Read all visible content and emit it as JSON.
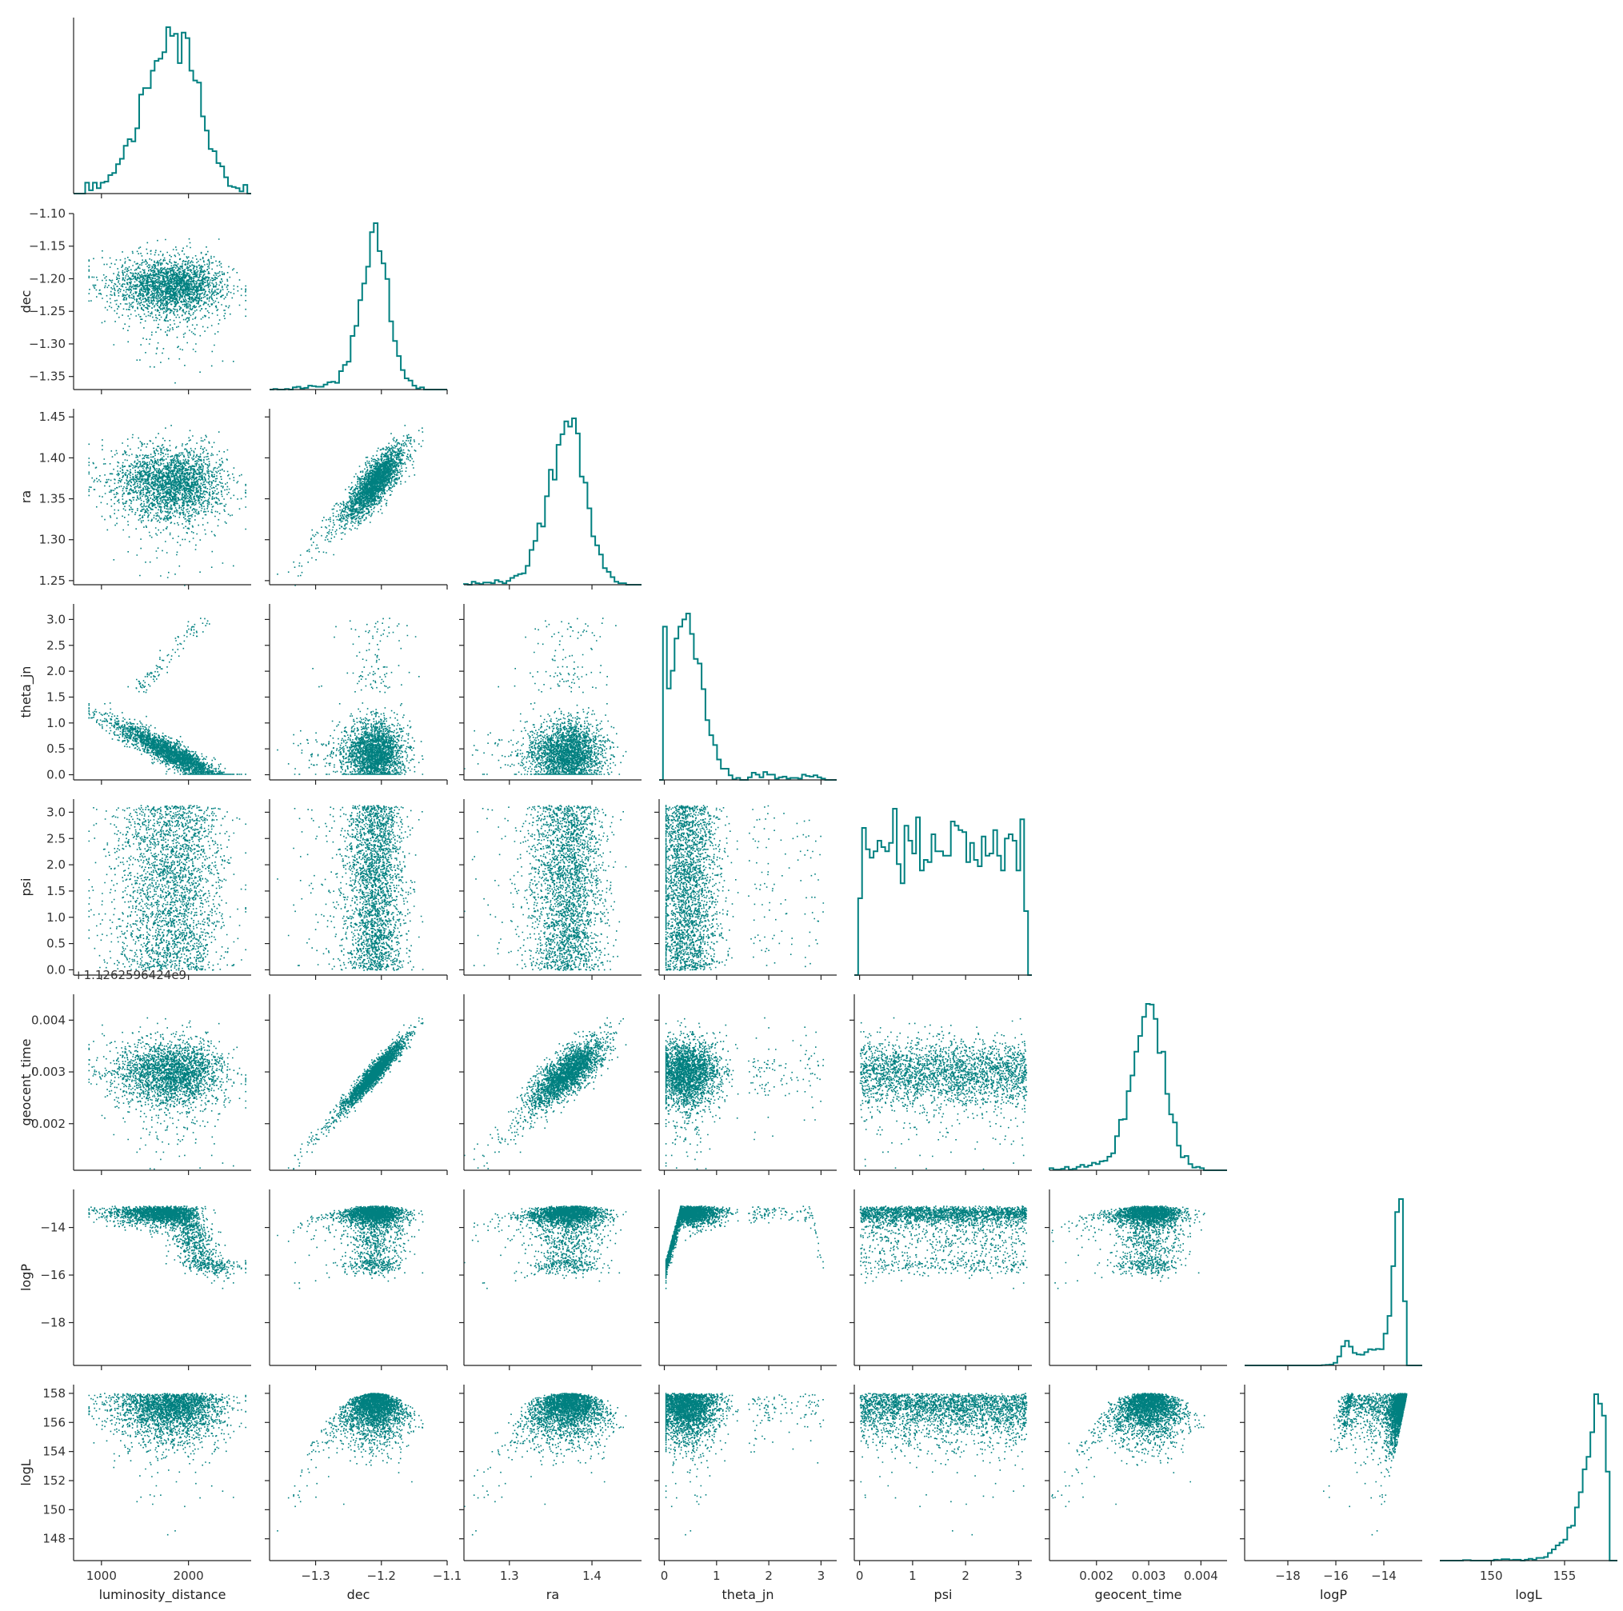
{
  "colors": {
    "series": "#008080",
    "axis": "#222222",
    "text": "#333333"
  },
  "chart_data": {
    "type": "scatter",
    "kind": "corner-plot",
    "n_samples": 2600,
    "offset_label": "+1.1262596424e9",
    "variables": [
      {
        "name": "luminosity_distance",
        "label": "luminosity_distance",
        "range": [
          680,
          2720
        ],
        "ticks": [
          1000,
          2000
        ],
        "tick_labels": [
          "1000",
          "2000"
        ],
        "mean": 1750,
        "sd": 330,
        "skew": -0.35
      },
      {
        "name": "dec",
        "label": "dec",
        "range": [
          -1.37,
          -1.1
        ],
        "ticks": [
          -1.35,
          -1.3,
          -1.25,
          -1.2,
          -1.15,
          -1.1
        ],
        "tick_labels": [
          "−1.35",
          "−1.30",
          "−1.25",
          "−1.20",
          "−1.15",
          "−1.10"
        ],
        "diag_ticks": [
          -1.3,
          -1.2,
          -1.1
        ],
        "diag_tick_labels": [
          "−1.3",
          "−1.2",
          "−1.1"
        ],
        "mean": -1.21,
        "sd": 0.022
      },
      {
        "name": "ra",
        "label": "ra",
        "range": [
          1.245,
          1.46
        ],
        "ticks": [
          1.25,
          1.3,
          1.35,
          1.4,
          1.45
        ],
        "tick_labels": [
          "1.25",
          "1.30",
          "1.35",
          "1.40",
          "1.45"
        ],
        "diag_ticks": [
          1.3,
          1.4
        ],
        "diag_tick_labels": [
          "1.3",
          "1.4"
        ],
        "mean": 1.37,
        "sd": 0.022
      },
      {
        "name": "theta_jn",
        "label": "theta_jn",
        "range": [
          -0.1,
          3.3
        ],
        "ticks": [
          0,
          0.5,
          1.0,
          1.5,
          2.0,
          2.5,
          3.0
        ],
        "tick_labels": [
          "0.0",
          "0.5",
          "1.0",
          "1.5",
          "2.0",
          "2.5",
          "3.0"
        ],
        "diag_ticks": [
          0,
          1,
          2,
          3
        ],
        "diag_tick_labels": [
          "0",
          "1",
          "2",
          "3"
        ],
        "mode": 0.6
      },
      {
        "name": "psi",
        "label": "psi",
        "range": [
          -0.1,
          3.25
        ],
        "ticks": [
          0,
          0.5,
          1.0,
          1.5,
          2.0,
          2.5,
          3.0
        ],
        "tick_labels": [
          "0.0",
          "0.5",
          "1.0",
          "1.5",
          "2.0",
          "2.5",
          "3.0"
        ],
        "diag_ticks": [
          0,
          1,
          2,
          3
        ],
        "diag_tick_labels": [
          "0",
          "1",
          "2",
          "3"
        ],
        "min": 0,
        "max": 3.1416
      },
      {
        "name": "geocent_time",
        "label": "geocent_time",
        "range": [
          0.0011,
          0.0045
        ],
        "ticks": [
          0.002,
          0.003,
          0.004
        ],
        "tick_labels": [
          "0.002",
          "0.003",
          "0.004"
        ],
        "mean": 0.003,
        "sd": 0.00032
      },
      {
        "name": "logP",
        "label": "logP",
        "range": [
          -19.8,
          -12.4
        ],
        "ticks": [
          -18,
          -16,
          -14
        ],
        "tick_labels": [
          "−18",
          "−16",
          "−14"
        ],
        "mode": -13.1
      },
      {
        "name": "logL",
        "label": "logL",
        "range": [
          146.5,
          158.6
        ],
        "ticks": [
          148,
          150,
          152,
          154,
          156,
          158
        ],
        "tick_labels": [
          "148",
          "150",
          "152",
          "154",
          "156",
          "158"
        ],
        "diag_ticks": [
          150,
          155
        ],
        "diag_tick_labels": [
          "150",
          "155"
        ],
        "max": 158.1,
        "mode": 157.2
      }
    ],
    "correlations": [
      [
        "dec",
        "ra",
        0.8
      ],
      [
        "dec",
        "geocent_time",
        0.95
      ],
      [
        "ra",
        "geocent_time",
        0.8
      ],
      [
        "luminosity_distance",
        "theta_jn",
        -0.85
      ]
    ],
    "lower_triangle": "scatter",
    "diagonal": "step-histogram",
    "grid": false,
    "legend": "none"
  }
}
